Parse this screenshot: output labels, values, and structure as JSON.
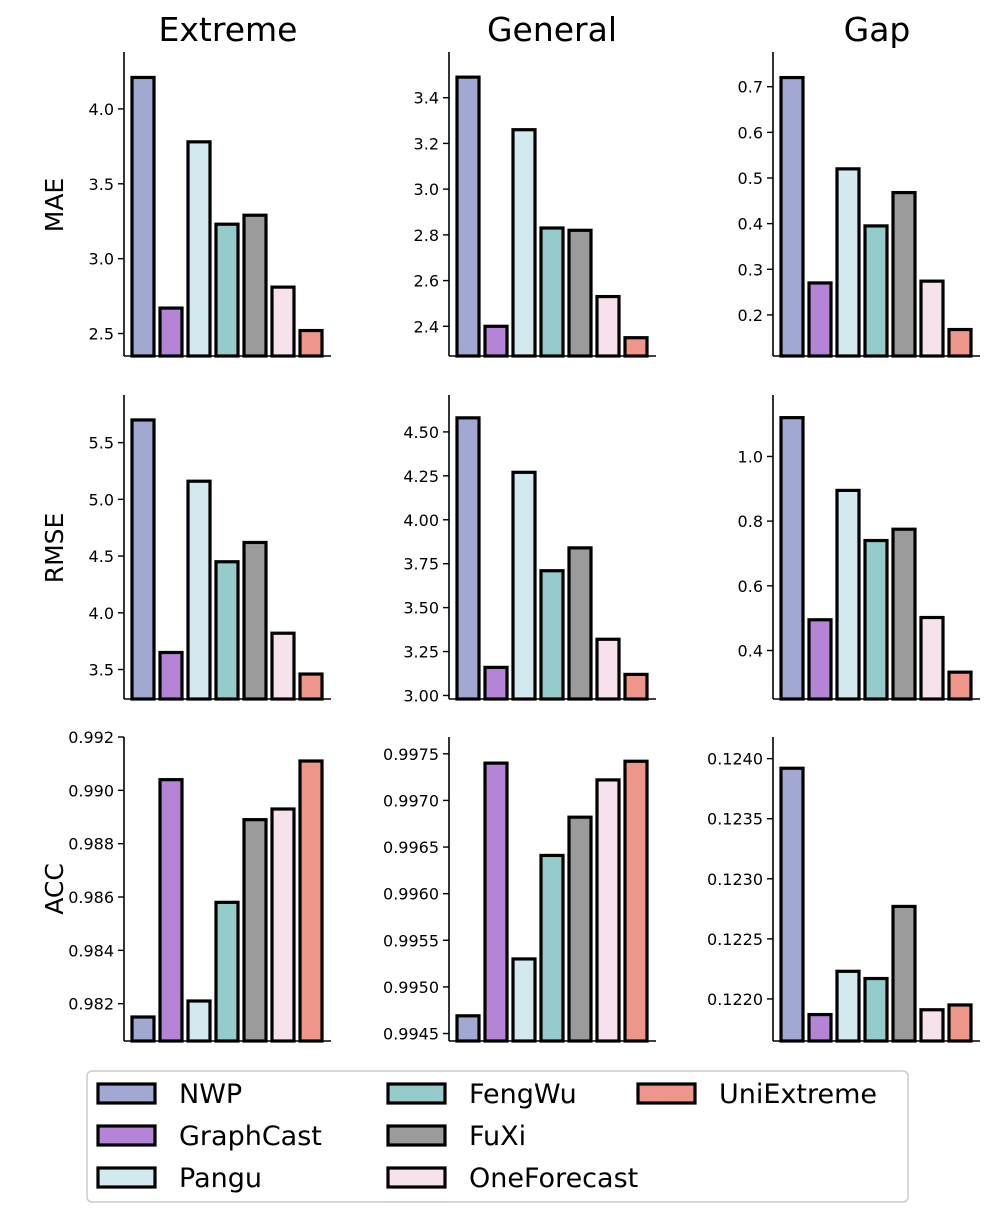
{
  "colors": {
    "NWP": "#a1a8d1",
    "GraphCast": "#b584d6",
    "Pangu": "#d2e9f0",
    "FengWu": "#94cbcb",
    "FuXi": "#9b9b9b",
    "OneForecast": "#f7e1ec",
    "UniExtreme": "#ef968b"
  },
  "chart_data": {
    "type": "bar",
    "columns": [
      "Extreme",
      "General",
      "Gap"
    ],
    "rows": [
      "MAE",
      "RMSE",
      "ACC"
    ],
    "series_names": [
      "NWP",
      "GraphCast",
      "Pangu",
      "FengWu",
      "FuXi",
      "OneForecast",
      "UniExtreme"
    ],
    "panels": [
      {
        "id": "mae-extreme",
        "row": "MAE",
        "column": "Extreme",
        "ylim": [
          2.35,
          4.38
        ],
        "ticks": [
          "2.5",
          "3.0",
          "3.5",
          "4.0"
        ],
        "values": [
          4.21,
          2.67,
          3.78,
          3.23,
          3.29,
          2.81,
          2.52
        ]
      },
      {
        "id": "mae-general",
        "row": "MAE",
        "column": "General",
        "ylim": [
          2.27,
          3.6
        ],
        "ticks": [
          "2.4",
          "2.6",
          "2.8",
          "3.0",
          "3.2",
          "3.4"
        ],
        "values": [
          3.49,
          2.4,
          3.26,
          2.83,
          2.82,
          2.53,
          2.35
        ]
      },
      {
        "id": "mae-gap",
        "row": "MAE",
        "column": "Gap",
        "ylim": [
          0.11,
          0.776
        ],
        "ticks": [
          "0.2",
          "0.3",
          "0.4",
          "0.5",
          "0.6",
          "0.7"
        ],
        "values": [
          0.72,
          0.27,
          0.52,
          0.395,
          0.468,
          0.274,
          0.168
        ]
      },
      {
        "id": "rmse-extreme",
        "row": "RMSE",
        "column": "Extreme",
        "ylim": [
          3.24,
          5.92
        ],
        "ticks": [
          "3.5",
          "4.0",
          "4.5",
          "5.0",
          "5.5"
        ],
        "values": [
          5.7,
          3.65,
          5.16,
          4.45,
          4.62,
          3.82,
          3.46
        ]
      },
      {
        "id": "rmse-general",
        "row": "RMSE",
        "column": "General",
        "ylim": [
          2.98,
          4.71
        ],
        "ticks": [
          "3.00",
          "3.25",
          "3.50",
          "3.75",
          "4.00",
          "4.25",
          "4.50"
        ],
        "values": [
          4.58,
          3.16,
          4.27,
          3.71,
          3.84,
          3.32,
          3.12
        ]
      },
      {
        "id": "rmse-gap",
        "row": "RMSE",
        "column": "Gap",
        "ylim": [
          0.25,
          1.19
        ],
        "ticks": [
          "0.4",
          "0.6",
          "0.8",
          "1.0"
        ],
        "values": [
          1.12,
          0.495,
          0.895,
          0.74,
          0.775,
          0.502,
          0.333
        ]
      },
      {
        "id": "acc-extreme",
        "row": "ACC",
        "column": "Extreme",
        "ylim": [
          0.9806,
          0.992
        ],
        "ticks": [
          "0.982",
          "0.984",
          "0.986",
          "0.988",
          "0.990",
          "0.992"
        ],
        "values": [
          0.9815,
          0.9904,
          0.9821,
          0.9858,
          0.9889,
          0.9893,
          0.9911
        ]
      },
      {
        "id": "acc-general",
        "row": "ACC",
        "column": "General",
        "ylim": [
          0.99442,
          0.99768
        ],
        "ticks": [
          "0.9945",
          "0.9950",
          "0.9955",
          "0.9960",
          "0.9965",
          "0.9970",
          "0.9975"
        ],
        "values": [
          0.99469,
          0.9974,
          0.9953,
          0.99641,
          0.99682,
          0.99722,
          0.99742
        ]
      },
      {
        "id": "acc-gap",
        "row": "ACC",
        "column": "Gap",
        "ylim": [
          0.12165,
          0.12418
        ],
        "ticks": [
          "0.1220",
          "0.1225",
          "0.1230",
          "0.1235",
          "0.1240"
        ],
        "values": [
          0.12392,
          0.12187,
          0.12223,
          0.12217,
          0.12277,
          0.12191,
          0.12195
        ]
      }
    ],
    "legend": [
      "NWP",
      "GraphCast",
      "Pangu",
      "FengWu",
      "FuXi",
      "OneForecast",
      "UniExtreme"
    ],
    "legend_position": "bottom"
  }
}
